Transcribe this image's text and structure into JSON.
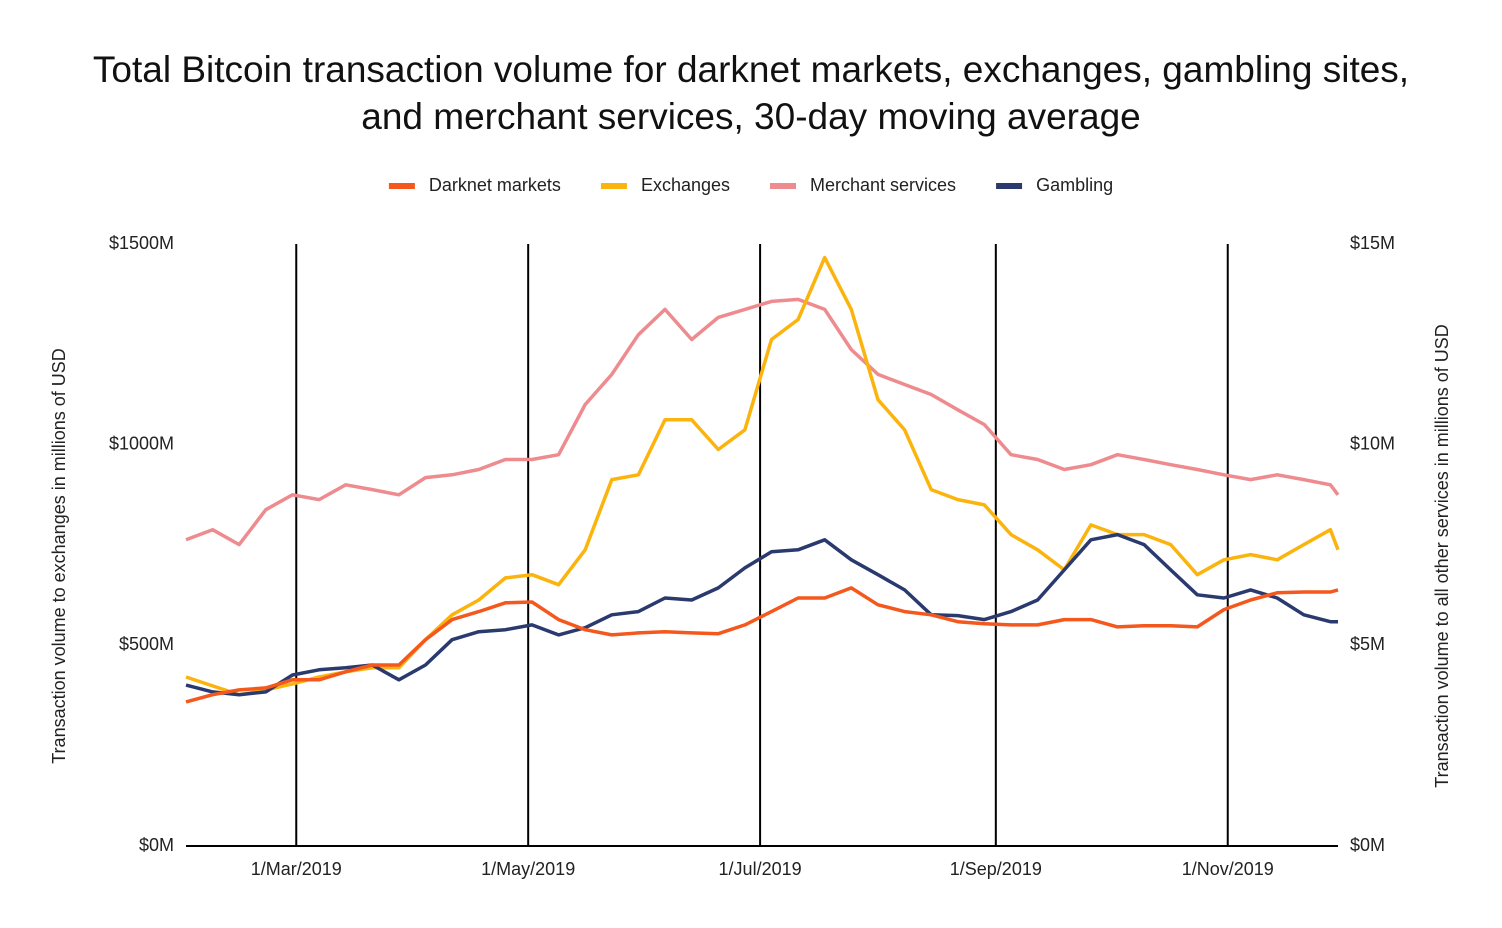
{
  "chart_data": {
    "type": "line",
    "title": "Total Bitcoin transaction volume for darknet markets, exchanges, gambling sites, and merchant services, 30-day moving average",
    "y_label": "Transaction  volume to exchanges in millions of USD",
    "y2_label": "Transaction volume to all other services in millions of USD",
    "x": [
      "2019-01-31",
      "2019-02-07",
      "2019-02-14",
      "2019-02-21",
      "2019-02-28",
      "2019-03-07",
      "2019-03-14",
      "2019-03-21",
      "2019-03-28",
      "2019-04-04",
      "2019-04-11",
      "2019-04-18",
      "2019-04-25",
      "2019-05-02",
      "2019-05-09",
      "2019-05-16",
      "2019-05-23",
      "2019-05-30",
      "2019-06-06",
      "2019-06-13",
      "2019-06-20",
      "2019-06-27",
      "2019-07-04",
      "2019-07-11",
      "2019-07-18",
      "2019-07-25",
      "2019-08-01",
      "2019-08-08",
      "2019-08-15",
      "2019-08-22",
      "2019-08-29",
      "2019-09-05",
      "2019-09-12",
      "2019-09-19",
      "2019-09-26",
      "2019-10-03",
      "2019-10-10",
      "2019-10-17",
      "2019-10-24",
      "2019-10-31",
      "2019-11-07",
      "2019-11-14",
      "2019-11-21",
      "2019-11-28",
      "2019-11-30"
    ],
    "xlim": [
      "2019-01-31",
      "2019-11-30"
    ],
    "xticks": [
      {
        "value": "2019-03-01",
        "label": "1/Mar/2019"
      },
      {
        "value": "2019-05-01",
        "label": "1/May/2019"
      },
      {
        "value": "2019-07-01",
        "label": "1/Jul/2019"
      },
      {
        "value": "2019-09-01",
        "label": "1/Sep/2019"
      },
      {
        "value": "2019-11-01",
        "label": "1/Nov/2019"
      }
    ],
    "ylim": [
      0,
      1500
    ],
    "yticks": [
      {
        "value": 0,
        "label": "$0M"
      },
      {
        "value": 500,
        "label": "$500M"
      },
      {
        "value": 1000,
        "label": "$1000M"
      },
      {
        "value": 1500,
        "label": "$1500M"
      }
    ],
    "y2lim": [
      0,
      15
    ],
    "y2ticks": [
      {
        "value": 0,
        "label": "$0M"
      },
      {
        "value": 5,
        "label": "$5M"
      },
      {
        "value": 10,
        "label": "$10M"
      },
      {
        "value": 15,
        "label": "$15M"
      }
    ],
    "grid": "x",
    "legend": "top",
    "series": [
      {
        "name": "Darknet markets",
        "color": "#f4581c",
        "axis": "y2",
        "values": [
          3.59,
          3.77,
          3.89,
          3.94,
          4.14,
          4.14,
          4.34,
          4.51,
          4.51,
          5.14,
          5.64,
          5.84,
          6.06,
          6.08,
          5.64,
          5.39,
          5.26,
          5.31,
          5.34,
          5.31,
          5.29,
          5.51,
          5.84,
          6.18,
          6.18,
          6.43,
          6.01,
          5.84,
          5.76,
          5.59,
          5.54,
          5.51,
          5.51,
          5.64,
          5.64,
          5.46,
          5.49,
          5.49,
          5.46,
          5.89,
          6.13,
          6.31,
          6.33,
          6.33,
          6.38
        ]
      },
      {
        "name": "Exchanges",
        "color": "#fbb40e",
        "axis": "y",
        "values": [
          421,
          399,
          377,
          389,
          404,
          421,
          434,
          444,
          444,
          514,
          576,
          613,
          668,
          676,
          651,
          738,
          913,
          925,
          1062,
          1062,
          988,
          1037,
          1262,
          1312,
          1466,
          1337,
          1112,
          1037,
          888,
          863,
          850,
          776,
          738,
          688,
          800,
          776,
          776,
          751,
          676,
          713,
          726,
          713,
          751,
          788,
          738
        ]
      },
      {
        "name": "Merchant services",
        "color": "#ee8b8f",
        "axis": "y2",
        "values": [
          7.63,
          7.88,
          7.51,
          8.38,
          8.75,
          8.63,
          9.0,
          8.88,
          8.75,
          9.18,
          9.25,
          9.38,
          9.63,
          9.63,
          9.75,
          11.0,
          11.75,
          12.74,
          13.37,
          12.62,
          13.17,
          13.37,
          13.57,
          13.62,
          13.37,
          12.37,
          11.75,
          11.5,
          11.25,
          10.87,
          10.5,
          9.75,
          9.63,
          9.38,
          9.5,
          9.75,
          9.63,
          9.5,
          9.38,
          9.25,
          9.13,
          9.25,
          9.13,
          9.0,
          8.75
        ]
      },
      {
        "name": "Gambling",
        "color": "#2b3a6e",
        "axis": "y2",
        "values": [
          4.01,
          3.84,
          3.77,
          3.84,
          4.26,
          4.39,
          4.44,
          4.51,
          4.14,
          4.51,
          5.14,
          5.34,
          5.39,
          5.51,
          5.26,
          5.44,
          5.76,
          5.84,
          6.18,
          6.13,
          6.43,
          6.93,
          7.33,
          7.38,
          7.63,
          7.13,
          6.76,
          6.38,
          5.76,
          5.74,
          5.64,
          5.84,
          6.13,
          6.88,
          7.63,
          7.76,
          7.51,
          6.88,
          6.26,
          6.18,
          6.38,
          6.18,
          5.76,
          5.59,
          5.59
        ]
      }
    ]
  }
}
